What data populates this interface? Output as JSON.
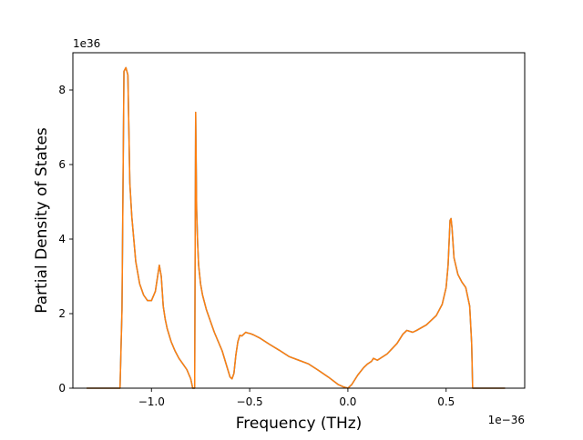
{
  "chart_data": {
    "type": "line",
    "title": "",
    "xlabel": "Frequency (THz)",
    "ylabel": "Partial Density of States",
    "x_offset_text": "1e−36",
    "y_offset_text": "1e36",
    "xlim": [
      -1.4,
      0.9
    ],
    "ylim": [
      0,
      9
    ],
    "x_ticks": [
      -1.0,
      -0.5,
      0.0,
      0.5
    ],
    "x_tick_labels": [
      "−1.0",
      "−0.5",
      "0.0",
      "0.5"
    ],
    "y_ticks": [
      0,
      2,
      4,
      6,
      8
    ],
    "y_tick_labels": [
      "0",
      "2",
      "4",
      "6",
      "8"
    ],
    "grid": false,
    "series": [
      {
        "color": "#1f77b4",
        "x": [
          -1.33,
          -1.2,
          -1.16,
          -1.15,
          -1.14,
          -1.13,
          -1.12,
          -1.11,
          -1.1,
          -1.08,
          -1.06,
          -1.04,
          -1.02,
          -1.0,
          -0.98,
          -0.96,
          -0.95,
          -0.94,
          -0.93,
          -0.92,
          -0.9,
          -0.88,
          -0.86,
          -0.84,
          -0.82,
          -0.8,
          -0.79,
          -0.78,
          -0.775,
          -0.77,
          -0.765,
          -0.76,
          -0.75,
          -0.74,
          -0.72,
          -0.7,
          -0.68,
          -0.66,
          -0.64,
          -0.62,
          -0.6,
          -0.59,
          -0.58,
          -0.57,
          -0.56,
          -0.55,
          -0.54,
          -0.53,
          -0.52,
          -0.51,
          -0.5,
          -0.48,
          -0.45,
          -0.4,
          -0.35,
          -0.3,
          -0.25,
          -0.2,
          -0.15,
          -0.1,
          -0.05,
          -0.02,
          0.0,
          0.02,
          0.05,
          0.08,
          0.1,
          0.12,
          0.13,
          0.15,
          0.2,
          0.25,
          0.28,
          0.3,
          0.33,
          0.35,
          0.4,
          0.45,
          0.48,
          0.5,
          0.51,
          0.52,
          0.525,
          0.53,
          0.54,
          0.56,
          0.58,
          0.6,
          0.62,
          0.63,
          0.635,
          0.64,
          0.8
        ],
        "y": [
          0,
          0,
          0,
          2.1,
          8.5,
          8.6,
          8.4,
          5.5,
          4.6,
          3.4,
          2.8,
          2.5,
          2.35,
          2.35,
          2.6,
          3.3,
          3.0,
          2.2,
          1.85,
          1.6,
          1.25,
          1.0,
          0.8,
          0.65,
          0.5,
          0.25,
          0,
          0,
          7.4,
          4.8,
          3.9,
          3.3,
          2.8,
          2.5,
          2.1,
          1.8,
          1.5,
          1.25,
          1.0,
          0.65,
          0.3,
          0.25,
          0.4,
          0.9,
          1.25,
          1.42,
          1.4,
          1.45,
          1.5,
          1.48,
          1.47,
          1.43,
          1.35,
          1.18,
          1.02,
          0.85,
          0.75,
          0.65,
          0.48,
          0.3,
          0.1,
          0.03,
          0,
          0.1,
          0.35,
          0.55,
          0.65,
          0.72,
          0.8,
          0.75,
          0.92,
          1.2,
          1.45,
          1.55,
          1.5,
          1.55,
          1.7,
          1.95,
          2.25,
          2.7,
          3.3,
          4.5,
          4.55,
          4.3,
          3.5,
          3.05,
          2.85,
          2.7,
          2.2,
          1.2,
          0,
          0,
          0
        ]
      },
      {
        "color": "#ff7f0e",
        "x": [
          -1.33,
          -1.2,
          -1.16,
          -1.15,
          -1.14,
          -1.13,
          -1.12,
          -1.11,
          -1.1,
          -1.08,
          -1.06,
          -1.04,
          -1.02,
          -1.0,
          -0.98,
          -0.96,
          -0.95,
          -0.94,
          -0.93,
          -0.92,
          -0.9,
          -0.88,
          -0.86,
          -0.84,
          -0.82,
          -0.8,
          -0.79,
          -0.78,
          -0.775,
          -0.77,
          -0.765,
          -0.76,
          -0.75,
          -0.74,
          -0.72,
          -0.7,
          -0.68,
          -0.66,
          -0.64,
          -0.62,
          -0.6,
          -0.59,
          -0.58,
          -0.57,
          -0.56,
          -0.55,
          -0.54,
          -0.53,
          -0.52,
          -0.51,
          -0.5,
          -0.48,
          -0.45,
          -0.4,
          -0.35,
          -0.3,
          -0.25,
          -0.2,
          -0.15,
          -0.1,
          -0.05,
          -0.02,
          0.0,
          0.02,
          0.05,
          0.08,
          0.1,
          0.12,
          0.13,
          0.15,
          0.2,
          0.25,
          0.28,
          0.3,
          0.33,
          0.35,
          0.4,
          0.45,
          0.48,
          0.5,
          0.51,
          0.52,
          0.525,
          0.53,
          0.54,
          0.56,
          0.58,
          0.6,
          0.62,
          0.63,
          0.635,
          0.64,
          0.8
        ],
        "y": [
          0,
          0,
          0,
          2.1,
          8.5,
          8.6,
          8.4,
          5.5,
          4.6,
          3.4,
          2.8,
          2.5,
          2.35,
          2.35,
          2.6,
          3.3,
          3.0,
          2.2,
          1.85,
          1.6,
          1.25,
          1.0,
          0.8,
          0.65,
          0.5,
          0.25,
          0,
          0,
          7.4,
          4.8,
          3.9,
          3.3,
          2.8,
          2.5,
          2.1,
          1.8,
          1.5,
          1.25,
          1.0,
          0.65,
          0.3,
          0.25,
          0.4,
          0.9,
          1.25,
          1.42,
          1.4,
          1.45,
          1.5,
          1.48,
          1.47,
          1.43,
          1.35,
          1.18,
          1.02,
          0.85,
          0.75,
          0.65,
          0.48,
          0.3,
          0.1,
          0.03,
          0,
          0.1,
          0.35,
          0.55,
          0.65,
          0.72,
          0.8,
          0.75,
          0.92,
          1.2,
          1.45,
          1.55,
          1.5,
          1.55,
          1.7,
          1.95,
          2.25,
          2.7,
          3.3,
          4.5,
          4.55,
          4.3,
          3.5,
          3.05,
          2.85,
          2.7,
          2.2,
          1.2,
          0,
          0,
          0
        ]
      }
    ]
  }
}
